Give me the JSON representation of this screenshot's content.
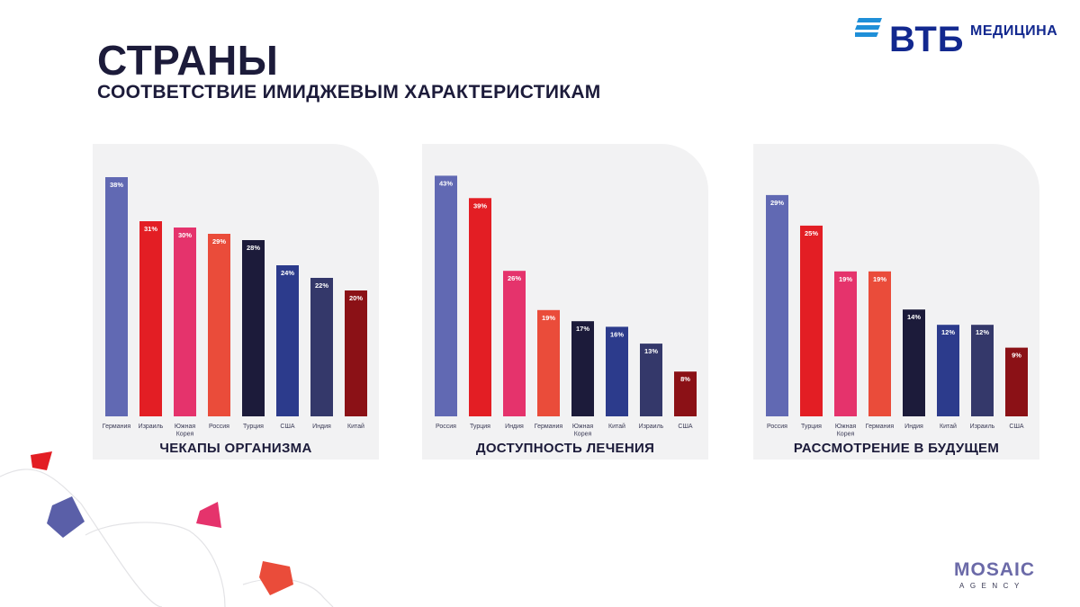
{
  "header": {
    "title": "СТРАНЫ",
    "subtitle": "СООТВЕТСТВИЕ ИМИДЖЕВЫМ ХАРАКТЕРИСТИКАМ"
  },
  "logos": {
    "vtb_word": "ВТБ",
    "vtb_suffix": "МЕДИЦИНА",
    "mosaic_word": "MOSAIC",
    "mosaic_sub": "AGENCY"
  },
  "colors": {
    "navy_text": "#1c1b3a",
    "vtb_blue": "#12288f",
    "vtb_stripes": "#1f8fd8",
    "panel_bg": "#f2f2f3"
  },
  "chart_data": [
    {
      "type": "bar",
      "title": "ЧЕКАПЫ ОРГАНИЗМА",
      "categories": [
        "Германия",
        "Израиль",
        "Южная Корея",
        "Россия",
        "Турция",
        "США",
        "Индия",
        "Китай"
      ],
      "values": [
        38,
        31,
        30,
        29,
        28,
        24,
        22,
        20
      ],
      "value_labels": [
        "38%",
        "31%",
        "30%",
        "29%",
        "28%",
        "24%",
        "22%",
        "20%"
      ],
      "colors": [
        "#6169b3",
        "#e31e24",
        "#e5336c",
        "#ea4c3a",
        "#1c1b3a",
        "#2c3b8c",
        "#34386a",
        "#8b1116"
      ],
      "unit": "%",
      "ylim": [
        0,
        40
      ]
    },
    {
      "type": "bar",
      "title": "ДОСТУПНОСТЬ ЛЕЧЕНИЯ",
      "categories": [
        "Россия",
        "Турция",
        "Индия",
        "Германия",
        "Южная Корея",
        "Китай",
        "Израиль",
        "США"
      ],
      "values": [
        43,
        39,
        26,
        19,
        17,
        16,
        13,
        8
      ],
      "value_labels": [
        "43%",
        "39%",
        "26%",
        "19%",
        "17%",
        "16%",
        "13%",
        "8%"
      ],
      "colors": [
        "#6169b3",
        "#e31e24",
        "#e5336c",
        "#ea4c3a",
        "#1c1b3a",
        "#2c3b8c",
        "#34386a",
        "#8b1116"
      ],
      "unit": "%",
      "ylim": [
        0,
        45
      ]
    },
    {
      "type": "bar",
      "title": "РАССМОТРЕНИЕ В БУДУЩЕМ",
      "categories": [
        "Россия",
        "Турция",
        "Южная Корея",
        "Германия",
        "Индия",
        "Китай",
        "Израиль",
        "США"
      ],
      "values": [
        29,
        25,
        19,
        19,
        14,
        12,
        12,
        9
      ],
      "value_labels": [
        "29%",
        "25%",
        "19%",
        "19%",
        "14%",
        "12%",
        "12%",
        "9%"
      ],
      "colors": [
        "#6169b3",
        "#e31e24",
        "#e5336c",
        "#ea4c3a",
        "#1c1b3a",
        "#2c3b8c",
        "#34386a",
        "#8b1116"
      ],
      "unit": "%",
      "ylim": [
        0,
        33
      ]
    }
  ]
}
